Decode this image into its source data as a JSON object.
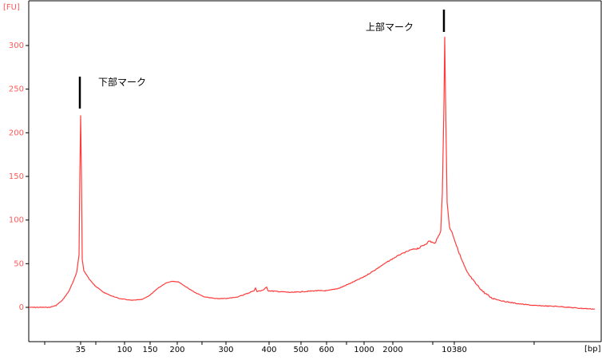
{
  "chart_data": {
    "type": "line",
    "title": "",
    "xlabel": "",
    "ylabel": "",
    "y_unit": "[FU]",
    "x_unit": "[bp]",
    "ylim": [
      -15,
      325
    ],
    "y_ticks": [
      0,
      50,
      100,
      150,
      200,
      250,
      300
    ],
    "x_ticks": [
      "35",
      "100",
      "150",
      "200",
      "300",
      "400",
      "500",
      "600",
      "1000",
      "2000",
      "10380"
    ],
    "x_scale": "nonlinear",
    "annotations": [
      {
        "text": "下部マーク",
        "x": "35"
      },
      {
        "text": "上部マーク",
        "x": "10380"
      }
    ],
    "colors": {
      "trace": "#ff3b3b",
      "axis_text": "#ff5a5a",
      "annotation": "#000000"
    },
    "series": [
      {
        "x": [
          "35",
          "35",
          "35",
          "35",
          "35",
          "35",
          "35",
          "35",
          "35",
          "35",
          "100",
          "150",
          "200",
          "300",
          "400",
          "400",
          "400",
          "500",
          "600",
          "1000",
          "2000",
          "2000",
          "2000",
          "2000",
          "2000",
          "10380",
          "10380",
          "10380",
          "10380",
          "10380",
          "10380",
          "10380"
        ],
        "values": [
          0,
          5,
          40,
          220,
          42,
          25,
          15,
          10,
          8,
          8,
          9,
          22,
          30,
          10,
          18,
          22,
          20,
          18,
          20,
          35,
          55,
          65,
          70,
          75,
          80,
          90,
          310,
          85,
          55,
          25,
          8,
          3
        ]
      }
    ]
  }
}
